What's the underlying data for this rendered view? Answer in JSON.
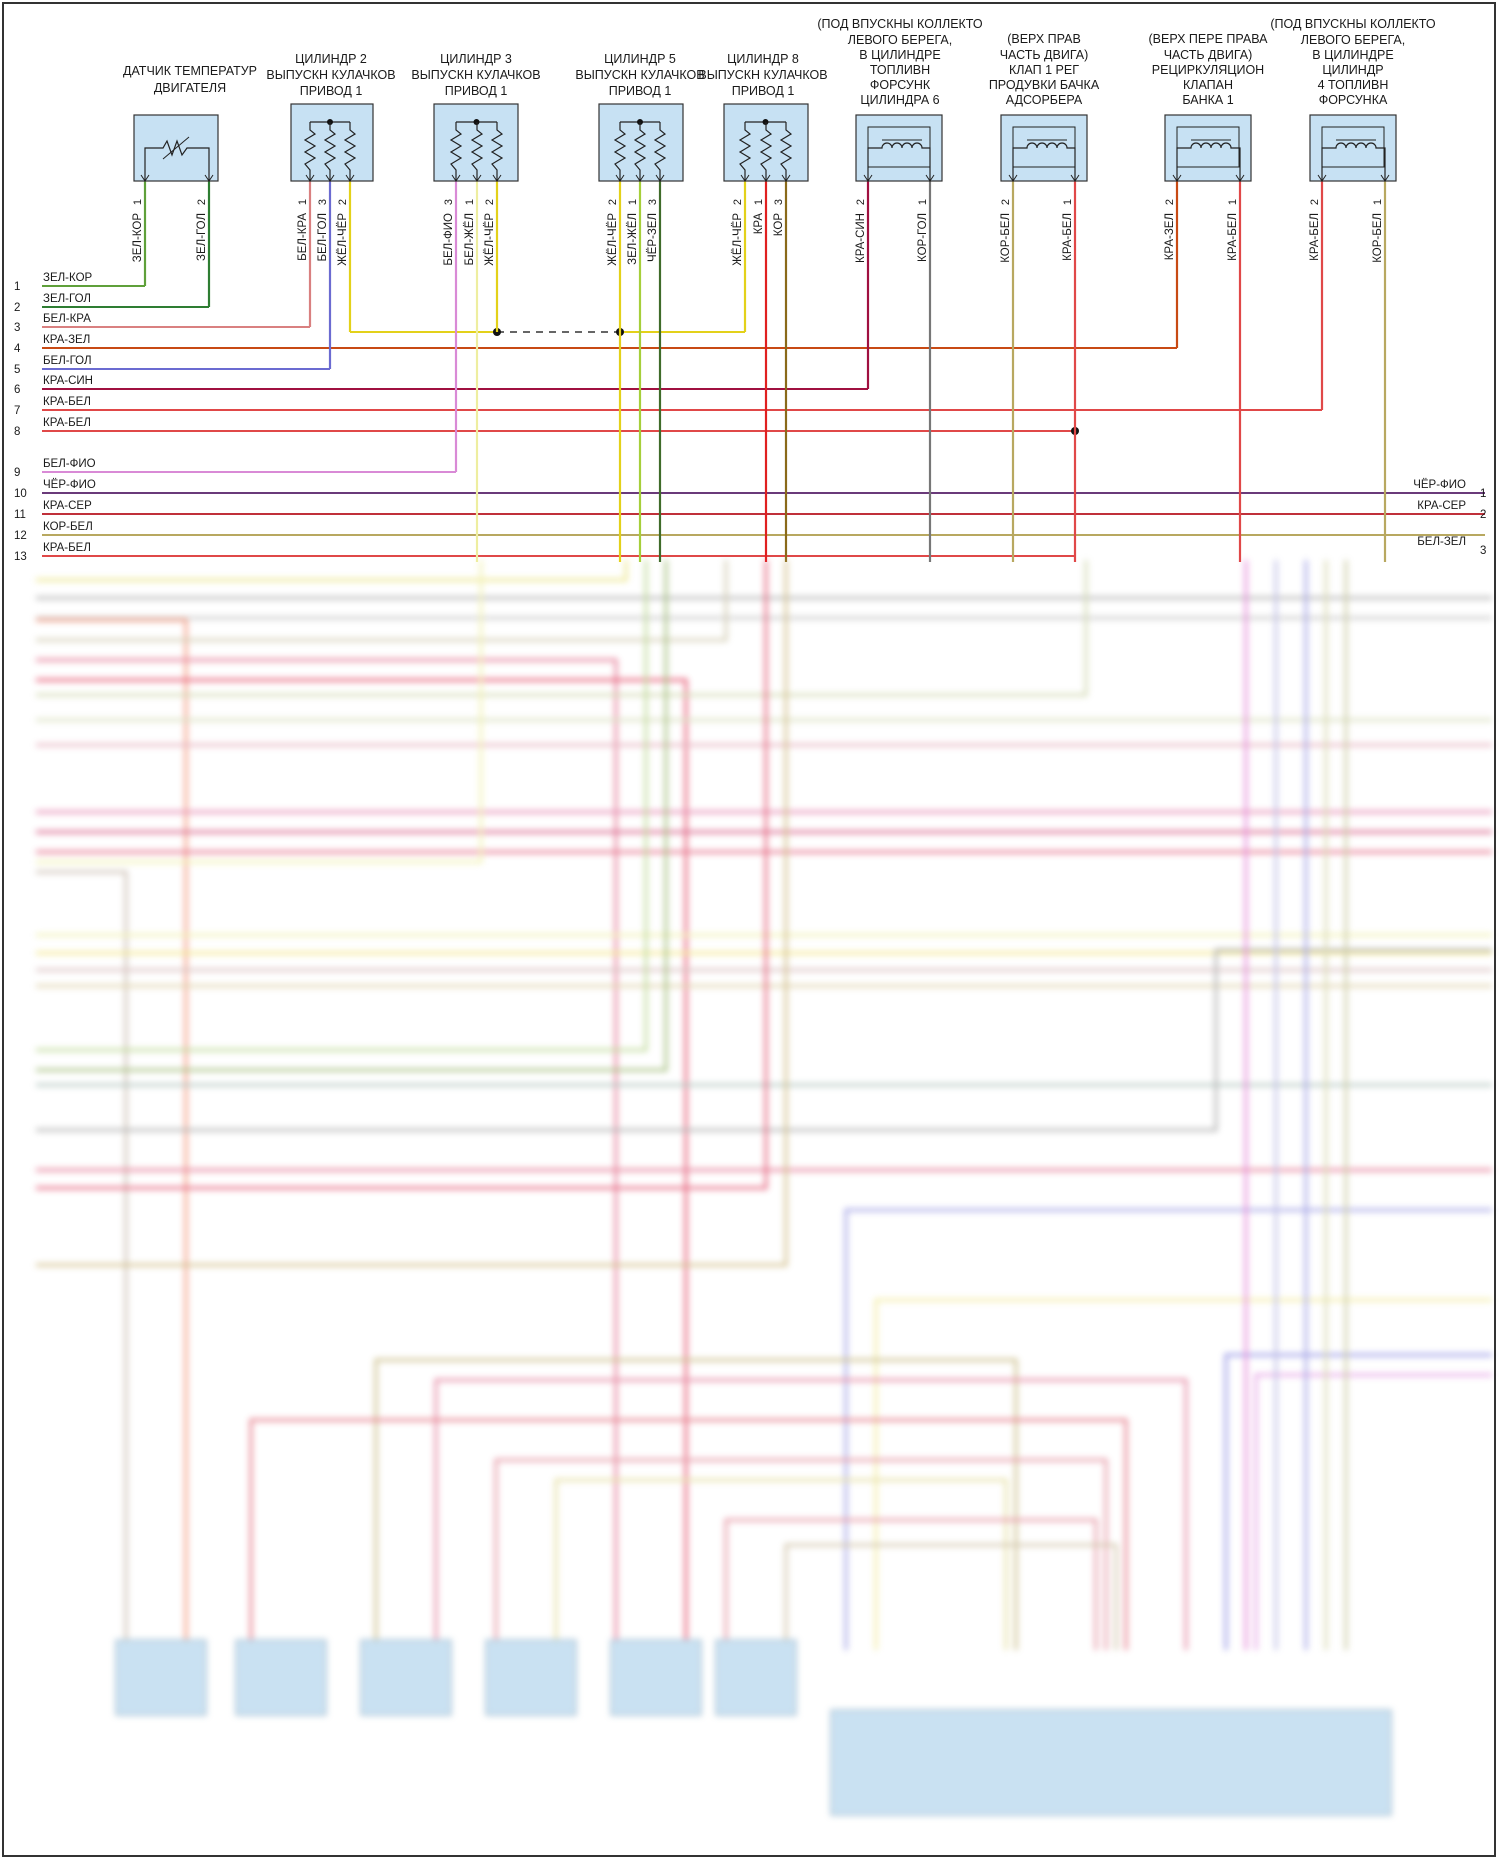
{
  "components": [
    {
      "id": "c1",
      "title": [
        "ДАТЧИК ТЕМПЕРАТУР",
        "ДВИГАТЕЛЯ"
      ],
      "kind": "thermistor",
      "pins": [
        {
          "num": "1",
          "wire": "ЗЕЛ-КОР",
          "color": "#5fa03a"
        },
        {
          "num": "2",
          "wire": "ЗЕЛ-ГОЛ",
          "color": "#2e7d32"
        }
      ]
    },
    {
      "id": "c2",
      "title": [
        "ЦИЛИНДР 2",
        "ВЫПУСКН КУЛАЧКОВ",
        "ПРИВОД 1"
      ],
      "kind": "resistors",
      "pins": [
        {
          "num": "1",
          "wire": "БЕЛ-КРА",
          "color": "#d98080"
        },
        {
          "num": "3",
          "wire": "БЕЛ-ГОЛ",
          "color": "#6b6bd1"
        },
        {
          "num": "2",
          "wire": "ЖЁЛ-ЧЁР",
          "color": "#e3d11a"
        }
      ]
    },
    {
      "id": "c3",
      "title": [
        "ЦИЛИНДР 3",
        "ВЫПУСКН КУЛАЧКОВ",
        "ПРИВОД 1"
      ],
      "kind": "resistors",
      "pins": [
        {
          "num": "3",
          "wire": "БЕЛ-ФИО",
          "color": "#d98ad6"
        },
        {
          "num": "1",
          "wire": "БЕЛ-ЖЁЛ",
          "color": "#eeeea0"
        },
        {
          "num": "2",
          "wire": "ЖЁЛ-ЧЁР",
          "color": "#e3d11a"
        }
      ]
    },
    {
      "id": "c4",
      "title": [
        "ЦИЛИНДР 5",
        "ВЫПУСКН КУЛАЧКОВ",
        "ПРИВОД 1"
      ],
      "kind": "resistors",
      "pins": [
        {
          "num": "2",
          "wire": "ЖЁЛ-ЧЁР",
          "color": "#e3d11a"
        },
        {
          "num": "1",
          "wire": "ЗЕЛ-ЖЁЛ",
          "color": "#a6cf3a"
        },
        {
          "num": "3",
          "wire": "ЧЁР-ЗЕЛ",
          "color": "#3f6b2a"
        }
      ]
    },
    {
      "id": "c5",
      "title": [
        "ЦИЛИНДР 8",
        "ВЫПУСКН КУЛАЧКОВ",
        "ПРИВОД 1"
      ],
      "kind": "resistors",
      "pins": [
        {
          "num": "2",
          "wire": "ЖЁЛ-ЧЁР",
          "color": "#e3d11a"
        },
        {
          "num": "1",
          "wire": "КРА",
          "color": "#e02020"
        },
        {
          "num": "3",
          "wire": "КОР",
          "color": "#8a6a1a"
        }
      ]
    },
    {
      "id": "c6",
      "title": [
        "(ПОД ВПУСКНЫ КОЛЛЕКТО",
        "ЛЕВОГО БЕРЕГА,",
        "В ЦИЛИНДРЕ",
        "ТОПЛИВН",
        "ФОРСУНК",
        "ЦИЛИНДРА 6"
      ],
      "kind": "coil",
      "pins": [
        {
          "num": "2",
          "wire": "КРА-СИН",
          "color": "#a01040"
        },
        {
          "num": "1",
          "wire": "КОР-ГОЛ",
          "color": "#777777"
        }
      ]
    },
    {
      "id": "c7",
      "title": [
        "(ВЕРХ ПРАВ",
        "ЧАСТЬ ДВИГА)",
        "КЛАП 1 РЕГ",
        "ПРОДУВКИ БАЧКА",
        "АДСОРБЕРА"
      ],
      "kind": "coil",
      "pins": [
        {
          "num": "2",
          "wire": "КОР-БЕЛ",
          "color": "#b8a860"
        },
        {
          "num": "1",
          "wire": "КРА-БЕЛ",
          "color": "#e04848"
        }
      ]
    },
    {
      "id": "c8",
      "title": [
        "(ВЕРХ ПЕРЕ ПРАВА",
        "ЧАСТЬ ДВИГА)",
        "РЕЦИРКУЛЯЦИОН",
        "КЛАПАН",
        "БАНКА 1"
      ],
      "kind": "coil",
      "pins": [
        {
          "num": "2",
          "wire": "КРА-ЗЕЛ",
          "color": "#c84a14"
        },
        {
          "num": "1",
          "wire": "КРА-БЕЛ",
          "color": "#e04848"
        }
      ]
    },
    {
      "id": "c9",
      "title": [
        "(ПОД ВПУСКНЫ КОЛЛЕКТО",
        "ЛЕВОГО БЕРЕГА,",
        "В ЦИЛИНДРЕ",
        "ЦИЛИНДР",
        "4 ТОПЛИВН",
        "ФОРСУНКА"
      ],
      "kind": "coil",
      "pins": [
        {
          "num": "2",
          "wire": "КРА-БЕЛ",
          "color": "#e04848"
        },
        {
          "num": "1",
          "wire": "КОР-БЕЛ",
          "color": "#b8a860"
        }
      ]
    }
  ],
  "rows": [
    {
      "num": "1",
      "label": "ЗЕЛ-КОР",
      "color": "#5fa03a"
    },
    {
      "num": "2",
      "label": "ЗЕЛ-ГОЛ",
      "color": "#2e7d32"
    },
    {
      "num": "3",
      "label": "БЕЛ-КРА",
      "color": "#d98080"
    },
    {
      "num": "4",
      "label": "КРА-ЗЕЛ",
      "color": "#c84a14"
    },
    {
      "num": "5",
      "label": "БЕЛ-ГОЛ",
      "color": "#6b6bd1"
    },
    {
      "num": "6",
      "label": "КРА-СИН",
      "color": "#a01040"
    },
    {
      "num": "7",
      "label": "КРА-БЕЛ",
      "color": "#e04848"
    },
    {
      "num": "8",
      "label": "КРА-БЕЛ",
      "color": "#e04848"
    },
    {
      "num": "9",
      "label": "БЕЛ-ФИО",
      "color": "#d98ad6"
    },
    {
      "num": "10",
      "label": "ЧЁР-ФИО",
      "color": "#6a3a7a"
    },
    {
      "num": "11",
      "label": "КРА-СЕР",
      "color": "#c0303a"
    },
    {
      "num": "12",
      "label": "КОР-БЕЛ",
      "color": "#b8a860"
    },
    {
      "num": "13",
      "label": "КРА-БЕЛ",
      "color": "#e04848"
    }
  ],
  "right_rows": [
    {
      "num": "1",
      "label": "ЧЁР-ФИО"
    },
    {
      "num": "2",
      "label": "КРА-СЕР"
    },
    {
      "num": "3",
      "label": "БЕЛ-ЗЕЛ"
    }
  ]
}
